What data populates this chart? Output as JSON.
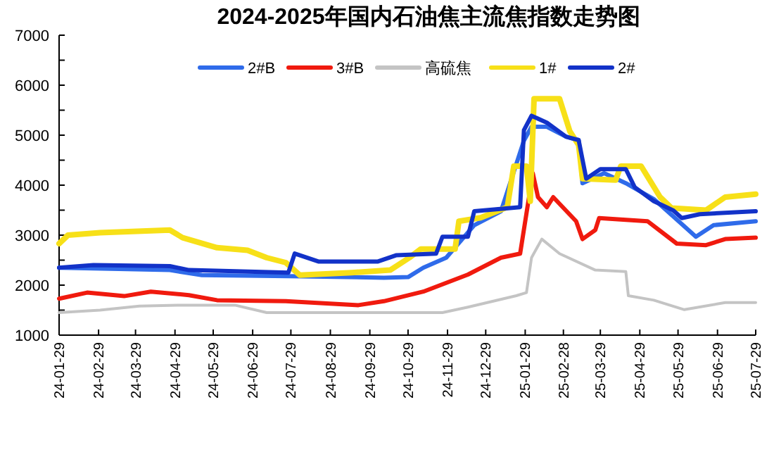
{
  "chart_data": {
    "type": "line",
    "title": "2024-2025年国内石油焦主流焦指数走势图",
    "xlim": [
      "2024-01-29",
      "2025-07-29"
    ],
    "xticks": [
      {
        "value": "2024-01-29",
        "label": "24-01-29"
      },
      {
        "value": "2024-02-29",
        "label": "24-02-29"
      },
      {
        "value": "2024-03-29",
        "label": "24-03-29"
      },
      {
        "value": "2024-04-29",
        "label": "24-04-29"
      },
      {
        "value": "2024-05-29",
        "label": "24-05-29"
      },
      {
        "value": "2024-06-29",
        "label": "24-06-29"
      },
      {
        "value": "2024-07-29",
        "label": "24-07-29"
      },
      {
        "value": "2024-08-29",
        "label": "24-08-29"
      },
      {
        "value": "2024-09-29",
        "label": "24-09-29"
      },
      {
        "value": "2024-10-29",
        "label": "24-10-29"
      },
      {
        "value": "2024-11-29",
        "label": "24-11-29"
      },
      {
        "value": "2024-12-29",
        "label": "24-12-29"
      },
      {
        "value": "2025-01-29",
        "label": "25-01-29"
      },
      {
        "value": "2025-02-28",
        "label": "25-02-28"
      },
      {
        "value": "2025-03-29",
        "label": "25-03-29"
      },
      {
        "value": "2025-04-29",
        "label": "25-04-29"
      },
      {
        "value": "2025-05-29",
        "label": "25-05-29"
      },
      {
        "value": "2025-06-29",
        "label": "25-06-29"
      },
      {
        "value": "2025-07-29",
        "label": "25-07-29"
      }
    ],
    "ylim": [
      1000,
      7000
    ],
    "yticks": [
      1000,
      {
        "value": 1500,
        "label": null
      },
      2000,
      {
        "value": 2500,
        "label": null
      },
      3000,
      {
        "value": 3500,
        "label": null
      },
      4000,
      {
        "value": 4500,
        "label": null
      },
      5000,
      {
        "value": 5500,
        "label": null
      },
      6000,
      {
        "value": 6500,
        "label": null
      },
      7000
    ],
    "grid": false,
    "legend": "top",
    "marker": "none",
    "line_style": "solid",
    "series": [
      {
        "name": "2#B",
        "color": "#2f6bea",
        "x": [
          "2024-01-29",
          "2024-04-25",
          "2024-05-20",
          "2024-07-27",
          "2024-10-10",
          "2024-10-29",
          "2024-11-10",
          "2024-11-28",
          "2024-12-20",
          "2025-01-10",
          "2025-01-28",
          "2025-02-03",
          "2025-02-15",
          "2025-03-02",
          "2025-03-12",
          "2025-03-15",
          "2025-04-01",
          "2025-04-18",
          "2025-05-10",
          "2025-05-25",
          "2025-06-12",
          "2025-06-26",
          "2025-07-29"
        ],
        "values": [
          2350,
          2300,
          2200,
          2180,
          2150,
          2160,
          2350,
          2550,
          3200,
          3480,
          4890,
          5170,
          5170,
          4970,
          4900,
          4040,
          4240,
          4040,
          3720,
          3380,
          2970,
          3200,
          3280
        ]
      },
      {
        "name": "3#B",
        "color": "#f01a0e",
        "x": [
          "2024-01-29",
          "2024-02-20",
          "2024-03-20",
          "2024-04-10",
          "2024-05-10",
          "2024-06-01",
          "2024-07-25",
          "2024-09-20",
          "2024-10-10",
          "2024-11-10",
          "2024-12-15",
          "2025-01-10",
          "2025-01-25",
          "2025-02-04",
          "2025-02-08",
          "2025-02-15",
          "2025-02-20",
          "2025-03-10",
          "2025-03-15",
          "2025-03-25",
          "2025-03-28",
          "2025-05-05",
          "2025-05-28",
          "2025-06-20",
          "2025-07-05",
          "2025-07-29"
        ],
        "values": [
          1730,
          1850,
          1780,
          1870,
          1800,
          1700,
          1680,
          1600,
          1680,
          1870,
          2210,
          2550,
          2630,
          4240,
          3760,
          3560,
          3760,
          3280,
          2920,
          3100,
          3340,
          3280,
          2830,
          2800,
          2920,
          2950
        ]
      },
      {
        "name": "高硫焦",
        "color": "#c4c4c4",
        "x": [
          "2024-01-29",
          "2024-03-01",
          "2024-04-01",
          "2024-05-01",
          "2024-06-15",
          "2024-07-10",
          "2024-11-25",
          "2024-12-15",
          "2025-01-22",
          "2025-01-30",
          "2025-02-03",
          "2025-02-11",
          "2025-02-25",
          "2025-03-25",
          "2025-04-18",
          "2025-04-20",
          "2025-05-10",
          "2025-06-03",
          "2025-07-05",
          "2025-07-29"
        ],
        "values": [
          1450,
          1500,
          1580,
          1600,
          1600,
          1450,
          1450,
          1560,
          1790,
          1850,
          2550,
          2920,
          2630,
          2300,
          2270,
          1790,
          1700,
          1510,
          1650,
          1650
        ]
      },
      {
        "name": "1#",
        "color": "#f7e018",
        "x": [
          "2024-01-29",
          "2024-02-05",
          "2024-03-01",
          "2024-04-25",
          "2024-05-05",
          "2024-06-01",
          "2024-06-25",
          "2024-07-10",
          "2024-07-25",
          "2024-08-05",
          "2024-09-15",
          "2024-10-15",
          "2024-10-30",
          "2024-11-08",
          "2024-12-05",
          "2024-12-08",
          "2024-12-25",
          "2025-01-15",
          "2025-01-20",
          "2025-01-30",
          "2025-02-02",
          "2025-02-05",
          "2025-02-25",
          "2025-03-05",
          "2025-03-12",
          "2025-03-15",
          "2025-04-10",
          "2025-04-14",
          "2025-04-30",
          "2025-05-15",
          "2025-05-24",
          "2025-06-20",
          "2025-07-05",
          "2025-07-29"
        ],
        "values": [
          2830,
          3000,
          3050,
          3100,
          2950,
          2750,
          2700,
          2550,
          2450,
          2200,
          2250,
          2300,
          2550,
          2720,
          2720,
          3280,
          3350,
          3560,
          4380,
          4380,
          3680,
          5730,
          5730,
          5080,
          4800,
          4130,
          4100,
          4380,
          4380,
          3760,
          3540,
          3500,
          3760,
          3820
        ]
      },
      {
        "name": "2#",
        "color": "#1232c8",
        "x": [
          "2024-01-29",
          "2024-02-25",
          "2024-04-25",
          "2024-05-10",
          "2024-07-27",
          "2024-08-01",
          "2024-08-20",
          "2024-10-05",
          "2024-10-20",
          "2024-11-20",
          "2024-11-25",
          "2024-12-15",
          "2024-12-20",
          "2025-01-25",
          "2025-01-28",
          "2025-02-03",
          "2025-02-15",
          "2025-03-02",
          "2025-03-12",
          "2025-03-18",
          "2025-03-29",
          "2025-04-18",
          "2025-04-25",
          "2025-05-10",
          "2025-05-25",
          "2025-06-01",
          "2025-06-15",
          "2025-07-29"
        ],
        "values": [
          2350,
          2400,
          2380,
          2300,
          2250,
          2630,
          2470,
          2470,
          2600,
          2630,
          2970,
          2970,
          3480,
          3560,
          5100,
          5390,
          5250,
          4970,
          4900,
          4130,
          4320,
          4320,
          3960,
          3680,
          3500,
          3340,
          3420,
          3480
        ]
      }
    ]
  }
}
